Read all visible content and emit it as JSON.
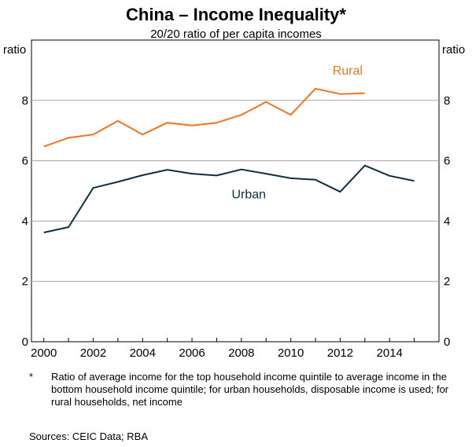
{
  "chart_data": {
    "type": "line",
    "title": "China – Income Inequality*",
    "subtitle": "20/20 ratio of per capita incomes",
    "ylabel_left": "ratio",
    "ylabel_right": "ratio",
    "ylim": [
      0,
      10
    ],
    "yticks": [
      0,
      2,
      4,
      6,
      8
    ],
    "xlim": [
      1999.5,
      2016
    ],
    "xticks": [
      2000,
      2002,
      2004,
      2006,
      2008,
      2010,
      2012,
      2014
    ],
    "grid": true,
    "series": [
      {
        "name": "Rural",
        "color": "#f07320",
        "x": [
          2000,
          2001,
          2002,
          2003,
          2004,
          2005,
          2006,
          2007,
          2008,
          2009,
          2010,
          2011,
          2012,
          2013
        ],
        "values": [
          6.47,
          6.76,
          6.87,
          7.32,
          6.87,
          7.26,
          7.17,
          7.26,
          7.52,
          7.95,
          7.52,
          8.39,
          8.21,
          8.24
        ]
      },
      {
        "name": "Urban",
        "color": "#0e2e44",
        "x": [
          2000,
          2001,
          2002,
          2003,
          2004,
          2005,
          2006,
          2007,
          2008,
          2009,
          2010,
          2011,
          2012,
          2013,
          2014,
          2015
        ],
        "values": [
          3.62,
          3.8,
          5.1,
          5.3,
          5.52,
          5.7,
          5.57,
          5.51,
          5.71,
          5.57,
          5.42,
          5.37,
          4.97,
          5.84,
          5.5,
          5.33
        ]
      }
    ]
  },
  "footnote": {
    "mark": "*",
    "text": "Ratio of average income for the top household income quintile to average income in the bottom household income quintile; for urban households, disposable income is used; for rural households, net income"
  },
  "sources": "Sources:   CEIC Data; RBA"
}
